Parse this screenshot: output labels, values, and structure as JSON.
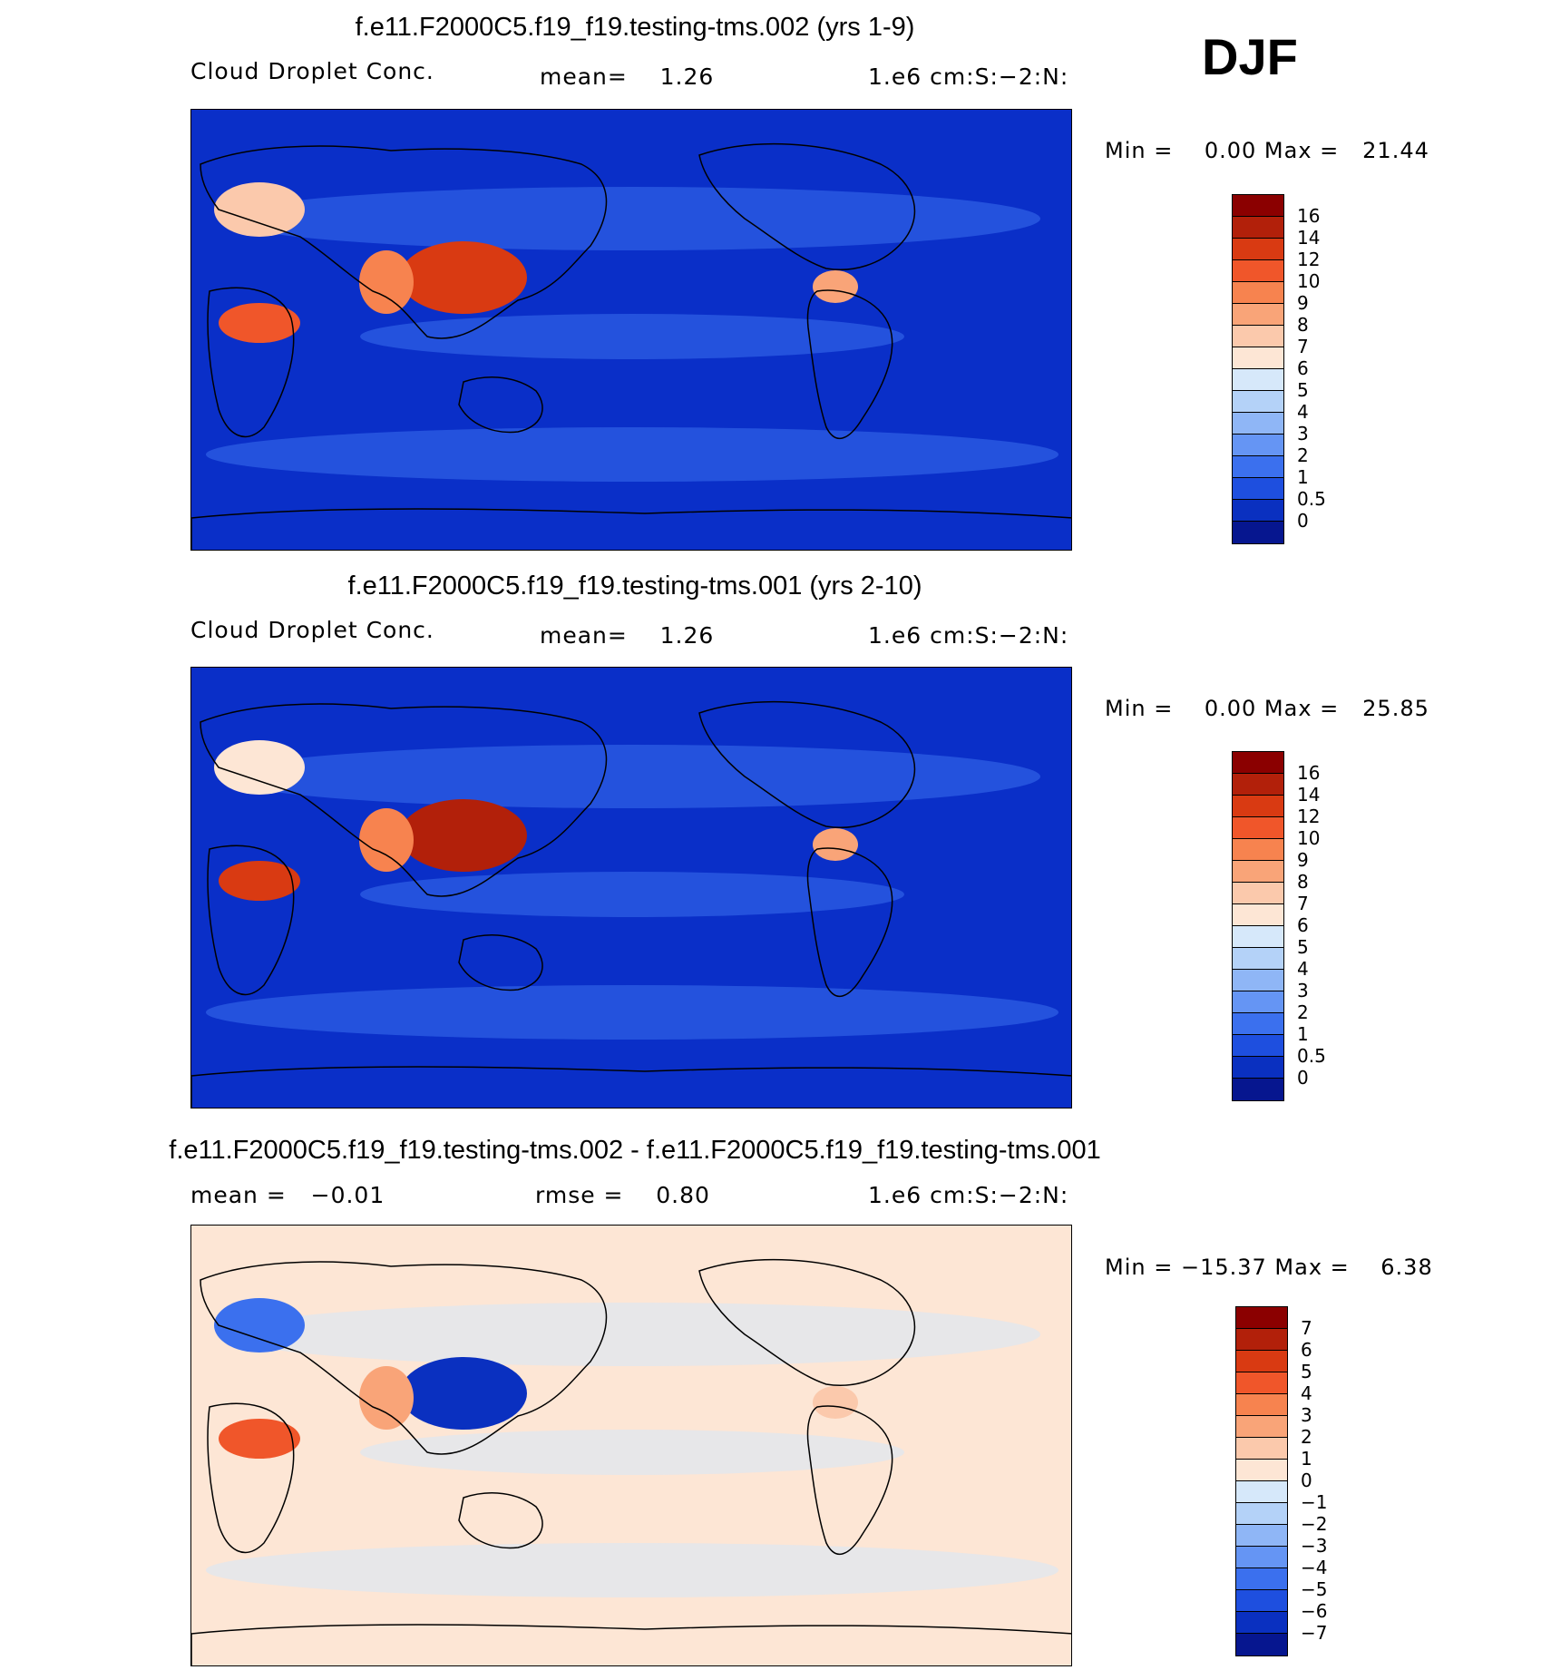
{
  "season": "DJF",
  "panels": [
    {
      "title": "f.e11.F2000C5.f19_f19.testing-tms.002 (yrs 1-9)",
      "variable": "Cloud Droplet Conc.",
      "stat": "mean=    1.26",
      "units": "1.e6 cm:S:−2:N:",
      "minmax": "Min =    0.00 Max =   21.44",
      "map_fill": "#0a2fc8",
      "colorbar": {
        "labels": [
          "16",
          "14",
          "12",
          "10",
          "9",
          "8",
          "7",
          "6",
          "5",
          "4",
          "3",
          "2",
          "1",
          "0.5",
          "0"
        ],
        "colors": [
          "#8b0000",
          "#b2200a",
          "#d93a12",
          "#f0562a",
          "#f7834f",
          "#f9a478",
          "#fbc9ac",
          "#fde6d5",
          "#d6e8fa",
          "#b4d2f8",
          "#8fb6f6",
          "#6595f4",
          "#3b70ee",
          "#1e4fdf",
          "#0a30c0",
          "#06168f"
        ]
      },
      "hotspots": [
        {
          "name": "china-hotspot",
          "color": "#d93a12"
        },
        {
          "name": "africa-hotspot",
          "color": "#f0562a"
        },
        {
          "name": "europe-hotspot",
          "color": "#fbc9ac"
        },
        {
          "name": "india-hotspot",
          "color": "#f7834f"
        },
        {
          "name": "central-america-hotspot",
          "color": "#f9a478"
        }
      ]
    },
    {
      "title": "f.e11.F2000C5.f19_f19.testing-tms.001 (yrs 2-10)",
      "variable": "Cloud Droplet Conc.",
      "stat": "mean=    1.26",
      "units": "1.e6 cm:S:−2:N:",
      "minmax": "Min =    0.00 Max =   25.85",
      "map_fill": "#0a2fc8",
      "colorbar": {
        "labels": [
          "16",
          "14",
          "12",
          "10",
          "9",
          "8",
          "7",
          "6",
          "5",
          "4",
          "3",
          "2",
          "1",
          "0.5",
          "0"
        ],
        "colors": [
          "#8b0000",
          "#b2200a",
          "#d93a12",
          "#f0562a",
          "#f7834f",
          "#f9a478",
          "#fbc9ac",
          "#fde6d5",
          "#d6e8fa",
          "#b4d2f8",
          "#8fb6f6",
          "#6595f4",
          "#3b70ee",
          "#1e4fdf",
          "#0a30c0",
          "#06168f"
        ]
      },
      "hotspots": [
        {
          "name": "china-hotspot",
          "color": "#b2200a"
        },
        {
          "name": "africa-hotspot",
          "color": "#d93a12"
        },
        {
          "name": "europe-hotspot",
          "color": "#fde6d5"
        },
        {
          "name": "india-hotspot",
          "color": "#f7834f"
        },
        {
          "name": "central-america-hotspot",
          "color": "#f9a478"
        }
      ]
    },
    {
      "title": "f.e11.F2000C5.f19_f19.testing-tms.002 - f.e11.F2000C5.f19_f19.testing-tms.001",
      "variable": "mean =   −0.01",
      "stat": "rmse =    0.80",
      "units": "1.e6 cm:S:−2:N:",
      "minmax": "Min = −15.37 Max =    6.38",
      "map_fill": "#fde6d5",
      "colorbar": {
        "labels": [
          "7",
          "6",
          "5",
          "4",
          "3",
          "2",
          "1",
          "0",
          "−1",
          "−2",
          "−3",
          "−4",
          "−5",
          "−6",
          "−7"
        ],
        "colors": [
          "#8b0000",
          "#b2200a",
          "#d93a12",
          "#f0562a",
          "#f7834f",
          "#f9a478",
          "#fbc9ac",
          "#fde6d5",
          "#d6e8fa",
          "#b4d2f8",
          "#8fb6f6",
          "#6595f4",
          "#3b70ee",
          "#1e4fdf",
          "#0a30c0",
          "#06168f"
        ]
      },
      "hotspots": [
        {
          "name": "china-anomaly",
          "color": "#0a30c0"
        },
        {
          "name": "africa-anomaly",
          "color": "#f0562a"
        },
        {
          "name": "east-africa-anomaly",
          "color": "#3b70ee"
        },
        {
          "name": "india-anomaly",
          "color": "#f9a478"
        },
        {
          "name": "central-asia-anomaly",
          "color": "#fbc9ac"
        }
      ]
    }
  ]
}
